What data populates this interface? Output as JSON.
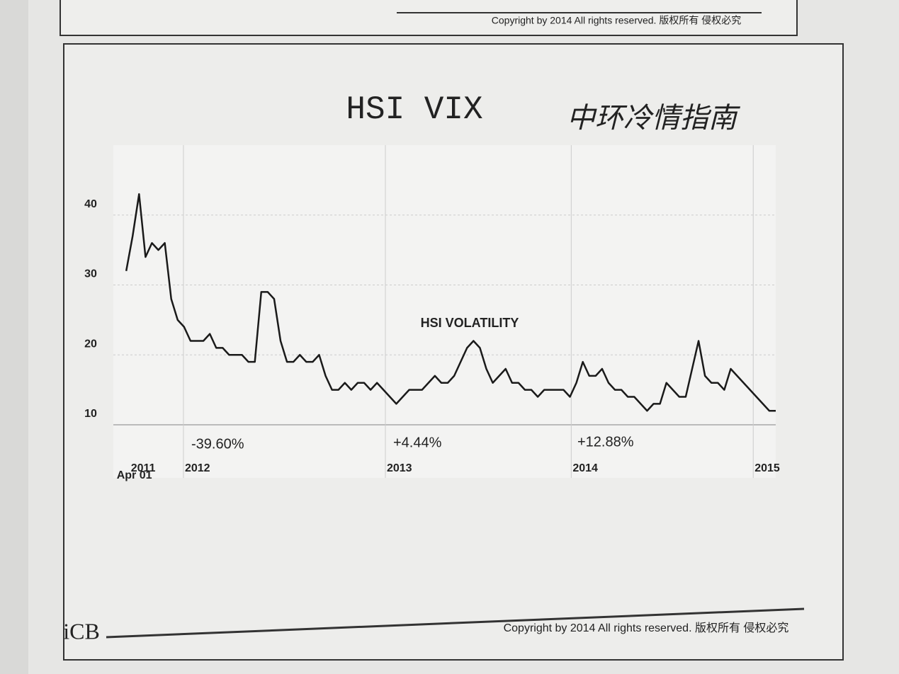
{
  "page": {
    "copyright_top": "Copyright by 2014 All rights reserved. 版权所有 侵权必究",
    "copyright_bottom": "Copyright by 2014 All rights reserved. 版权所有 侵权必究",
    "logo": "iCB",
    "handwritten_title": "中环冷情指南"
  },
  "chart_data": {
    "type": "line",
    "title": "HSI VIX",
    "annotations": [
      "HSI VOLATILITY",
      "-39.60%",
      "+4.44%",
      "+12.88%"
    ],
    "series": [
      {
        "name": "HSI VOLATILITY",
        "color": "#1a1a1a",
        "values": [
          32,
          37,
          43,
          34,
          36,
          35,
          36,
          28,
          25,
          24,
          22,
          22,
          22,
          23,
          21,
          21,
          20,
          20,
          20,
          19,
          19,
          29,
          29,
          28,
          22,
          19,
          19,
          20,
          19,
          19,
          20,
          17,
          15,
          15,
          16,
          15,
          16,
          16,
          15,
          16,
          15,
          14,
          13,
          14,
          15,
          15,
          15,
          16,
          17,
          16,
          16,
          17,
          19,
          21,
          22,
          21,
          18,
          16,
          17,
          18,
          16,
          16,
          15,
          15,
          14,
          15,
          15,
          15,
          15,
          14,
          16,
          19,
          17,
          17,
          18,
          16,
          15,
          15,
          14,
          14,
          13,
          12,
          13,
          13,
          16,
          15,
          14,
          14,
          18,
          22,
          17,
          16,
          16,
          15,
          18,
          17,
          16,
          15,
          14,
          13,
          12,
          12
        ]
      }
    ],
    "xlim": [
      -2,
      101
    ],
    "xticks": [
      {
        "value": -1.7,
        "label": "Apr 01"
      },
      {
        "value": 0.5,
        "label": "2011"
      },
      {
        "value": 8.9,
        "label": "2012"
      },
      {
        "value": 40.3,
        "label": "2013"
      },
      {
        "value": 69.2,
        "label": "2014"
      },
      {
        "value": 97.5,
        "label": "2015"
      }
    ],
    "ylim": [
      10,
      50
    ],
    "yticks": [
      10,
      20,
      30,
      40
    ],
    "grid": true
  }
}
